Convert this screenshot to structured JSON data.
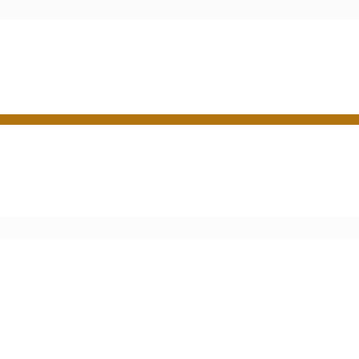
{
  "colors": {
    "background": "#ffffff",
    "top_band": "#fbfbfb",
    "accent_divider": "#b2740f",
    "lower_band": "#fcfcfc"
  }
}
